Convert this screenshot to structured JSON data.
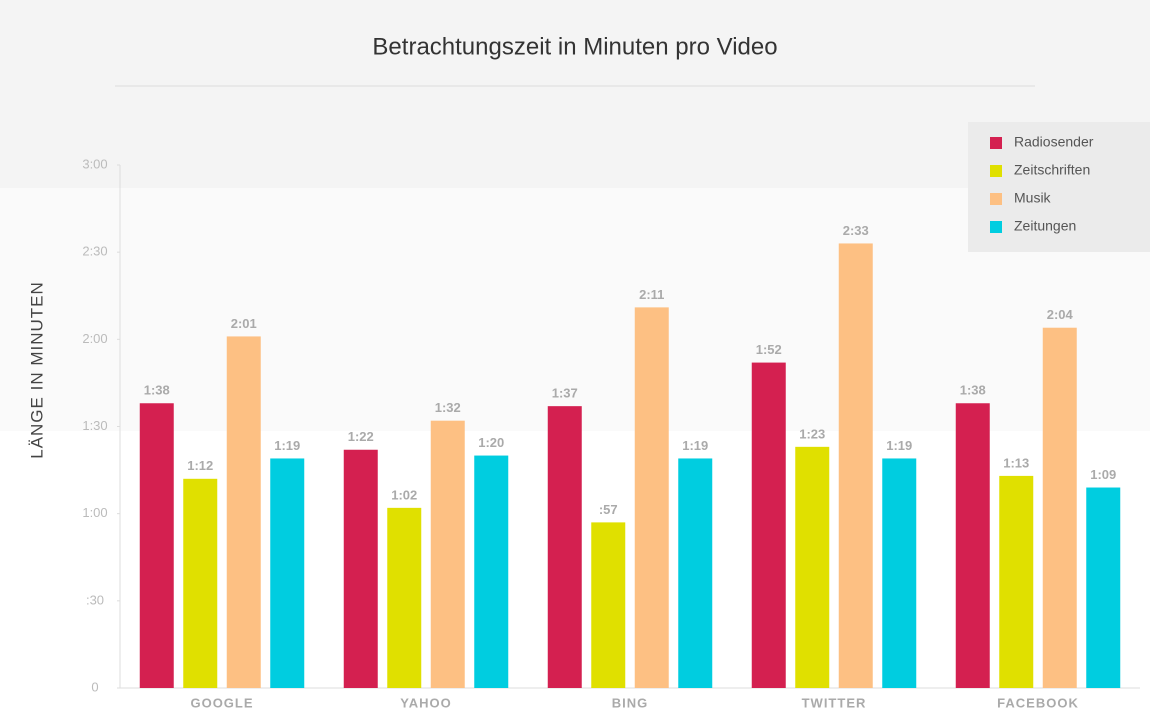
{
  "chart_data": {
    "type": "bar",
    "title": "Betrachtungszeit in Minuten pro Video",
    "y_label": "LÄNGE IN MINUTEN",
    "categories": [
      "GOOGLE",
      "YAHOO",
      "BING",
      "TWITTER",
      "FACEBOOK"
    ],
    "series": [
      {
        "name": "Radiosender",
        "color": "#d42050",
        "values": [
          98,
          82,
          97,
          112,
          98
        ],
        "value_labels": [
          "1:38",
          "1:22",
          "1:37",
          "1:52",
          "1:38"
        ]
      },
      {
        "name": "Zeitschriften",
        "color": "#e0e000",
        "values": [
          72,
          62,
          57,
          83,
          73
        ],
        "value_labels": [
          "1:12",
          "1:02",
          ":57",
          "1:23",
          "1:13"
        ]
      },
      {
        "name": "Musik",
        "color": "#fdc083",
        "values": [
          121,
          92,
          131,
          153,
          124
        ],
        "value_labels": [
          "2:01",
          "1:32",
          "2:11",
          "2:33",
          "2:04"
        ]
      },
      {
        "name": "Zeitungen",
        "color": "#00cde0",
        "values": [
          79,
          80,
          79,
          79,
          69
        ],
        "value_labels": [
          "1:19",
          "1:20",
          "1:19",
          "1:19",
          "1:09"
        ]
      }
    ],
    "ylim": [
      0,
      180
    ],
    "yticks": [
      0,
      {
        "value": 30,
        "label": ":30"
      },
      {
        "value": 60,
        "label": "1:00"
      },
      {
        "value": 90,
        "label": "1:30"
      },
      {
        "value": 120,
        "label": "2:00"
      },
      {
        "value": 150,
        "label": "2:30"
      },
      {
        "value": 180,
        "label": "3:00"
      }
    ],
    "legend": "top-right"
  }
}
